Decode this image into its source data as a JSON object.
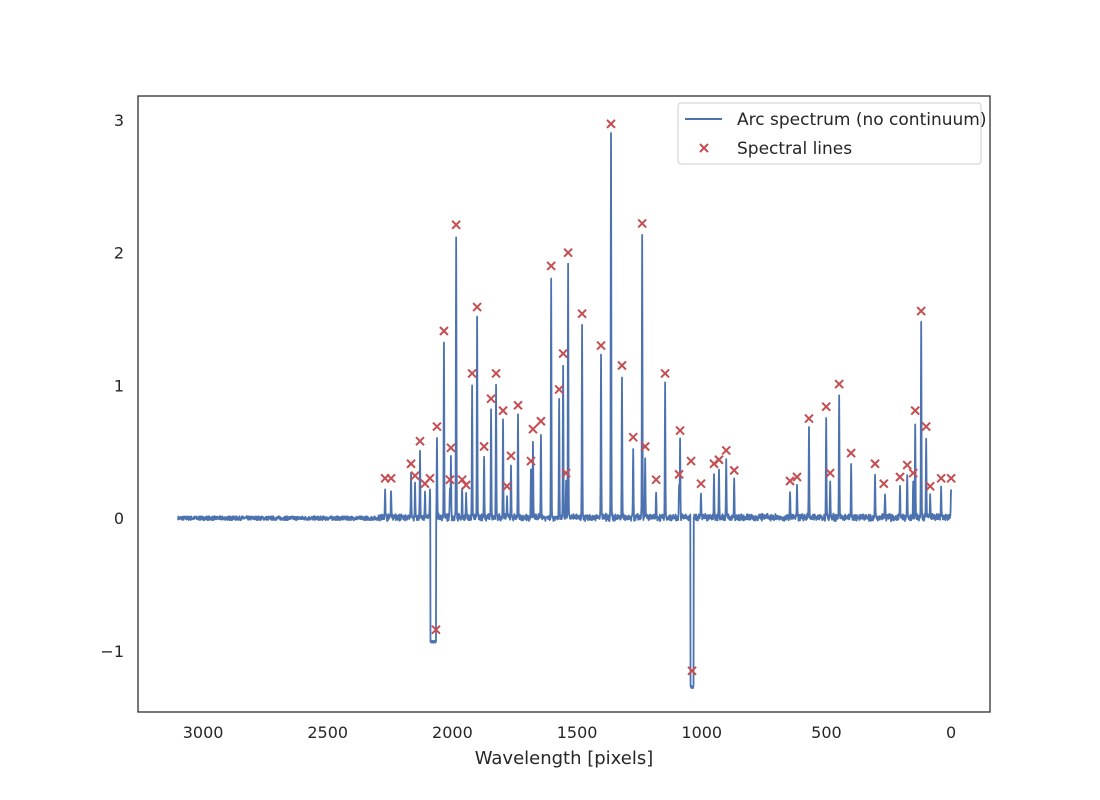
{
  "chart_data": {
    "type": "line",
    "title": "",
    "xlabel": "Wavelength [pixels]",
    "ylabel": "",
    "xlim": [
      3261,
      -156
    ],
    "ylim": [
      -1.46,
      3.18
    ],
    "x_inverted": true,
    "grid": false,
    "legend_placement": "top-right",
    "xticks": [
      3000,
      2500,
      2000,
      1500,
      1000,
      500,
      0
    ],
    "xtick_labels": [
      "3000",
      "2500",
      "2000",
      "1500",
      "1000",
      "500",
      "0"
    ],
    "yticks": [
      3,
      2,
      1,
      0,
      -1
    ],
    "ytick_labels": [
      "3",
      "2",
      "1",
      "0",
      "−1"
    ],
    "series": [
      {
        "name": "Arc spectrum (no continuum)",
        "kind": "line",
        "color": "#4c72b0",
        "x_range": [
          3100,
          0
        ],
        "peaks": [
          [
            2270,
            0.22
          ],
          [
            2246,
            0.22
          ],
          [
            2166,
            0.33
          ],
          [
            2150,
            0.24
          ],
          [
            2130,
            0.5
          ],
          [
            2110,
            0.18
          ],
          [
            2090,
            0.22
          ],
          [
            2062,
            0.6
          ],
          [
            2006,
            0.45
          ],
          [
            2010,
            0.21
          ],
          [
            1985,
            2.12
          ],
          [
            2034,
            1.31
          ],
          [
            1961,
            0.21
          ],
          [
            1945,
            0.17
          ],
          [
            1921,
            0.99
          ],
          [
            1901,
            1.5
          ],
          [
            1873,
            0.45
          ],
          [
            1845,
            0.82
          ],
          [
            1825,
            0.99
          ],
          [
            1797,
            0.72
          ],
          [
            1781,
            0.16
          ],
          [
            1765,
            0.39
          ],
          [
            1737,
            0.76
          ],
          [
            1685,
            0.35
          ],
          [
            1677,
            0.57
          ],
          [
            1645,
            0.64
          ],
          [
            1604,
            1.81
          ],
          [
            1572,
            0.88
          ],
          [
            1556,
            1.14
          ],
          [
            1544,
            0.26
          ],
          [
            1536,
            1.9
          ],
          [
            1480,
            1.45
          ],
          [
            1404,
            1.21
          ],
          [
            1364,
            2.89
          ],
          [
            1320,
            1.06
          ],
          [
            1275,
            0.52
          ],
          [
            1239,
            2.13
          ],
          [
            1227,
            0.45
          ],
          [
            1183,
            0.21
          ],
          [
            1147,
            1.0
          ],
          [
            1087,
            0.57
          ],
          [
            1091,
            0.25
          ],
          [
            1043,
            0.35
          ],
          [
            1003,
            0.18
          ],
          [
            951,
            0.33
          ],
          [
            931,
            0.36
          ],
          [
            902,
            0.43
          ],
          [
            870,
            0.28
          ],
          [
            646,
            0.2
          ],
          [
            618,
            0.23
          ],
          [
            570,
            0.66
          ],
          [
            501,
            0.75
          ],
          [
            485,
            0.26
          ],
          [
            449,
            0.92
          ],
          [
            401,
            0.4
          ],
          [
            305,
            0.32
          ],
          [
            265,
            0.18
          ],
          [
            205,
            0.23
          ],
          [
            176,
            0.32
          ],
          [
            152,
            0.26
          ],
          [
            144,
            0.71
          ],
          [
            120,
            1.47
          ],
          [
            100,
            0.6
          ],
          [
            84,
            0.16
          ],
          [
            40,
            0.22
          ],
          [
            0,
            0.22
          ]
        ],
        "dips": [
          [
            2088,
            2066,
            -0.93
          ],
          [
            1045,
            1033,
            -1.27
          ]
        ]
      },
      {
        "name": "Spectral lines",
        "kind": "scatter",
        "marker": "x",
        "color": "#c44e52",
        "points": [
          [
            2270,
            0.3
          ],
          [
            2246,
            0.3
          ],
          [
            2166,
            0.41
          ],
          [
            2150,
            0.32
          ],
          [
            2130,
            0.58
          ],
          [
            2110,
            0.26
          ],
          [
            2090,
            0.3
          ],
          [
            2062,
            0.69
          ],
          [
            2066,
            -0.84
          ],
          [
            2006,
            0.53
          ],
          [
            2010,
            0.29
          ],
          [
            1985,
            2.21
          ],
          [
            2034,
            1.41
          ],
          [
            1961,
            0.29
          ],
          [
            1945,
            0.25
          ],
          [
            1921,
            1.09
          ],
          [
            1901,
            1.59
          ],
          [
            1873,
            0.54
          ],
          [
            1845,
            0.9
          ],
          [
            1825,
            1.09
          ],
          [
            1797,
            0.81
          ],
          [
            1781,
            0.24
          ],
          [
            1765,
            0.47
          ],
          [
            1737,
            0.85
          ],
          [
            1685,
            0.43
          ],
          [
            1677,
            0.67
          ],
          [
            1645,
            0.73
          ],
          [
            1604,
            1.9
          ],
          [
            1572,
            0.97
          ],
          [
            1556,
            1.24
          ],
          [
            1544,
            0.34
          ],
          [
            1536,
            2.0
          ],
          [
            1480,
            1.54
          ],
          [
            1404,
            1.3
          ],
          [
            1364,
            2.97
          ],
          [
            1320,
            1.15
          ],
          [
            1275,
            0.61
          ],
          [
            1239,
            2.22
          ],
          [
            1227,
            0.54
          ],
          [
            1183,
            0.29
          ],
          [
            1147,
            1.09
          ],
          [
            1087,
            0.66
          ],
          [
            1091,
            0.33
          ],
          [
            1043,
            0.43
          ],
          [
            1039,
            -1.15
          ],
          [
            1003,
            0.26
          ],
          [
            951,
            0.41
          ],
          [
            931,
            0.44
          ],
          [
            902,
            0.51
          ],
          [
            870,
            0.36
          ],
          [
            646,
            0.28
          ],
          [
            618,
            0.31
          ],
          [
            570,
            0.75
          ],
          [
            501,
            0.84
          ],
          [
            485,
            0.34
          ],
          [
            449,
            1.01
          ],
          [
            401,
            0.49
          ],
          [
            305,
            0.41
          ],
          [
            270,
            0.26
          ],
          [
            205,
            0.31
          ],
          [
            176,
            0.4
          ],
          [
            152,
            0.34
          ],
          [
            144,
            0.81
          ],
          [
            120,
            1.56
          ],
          [
            100,
            0.69
          ],
          [
            84,
            0.24
          ],
          [
            40,
            0.3
          ],
          [
            0,
            0.3
          ]
        ]
      }
    ]
  }
}
